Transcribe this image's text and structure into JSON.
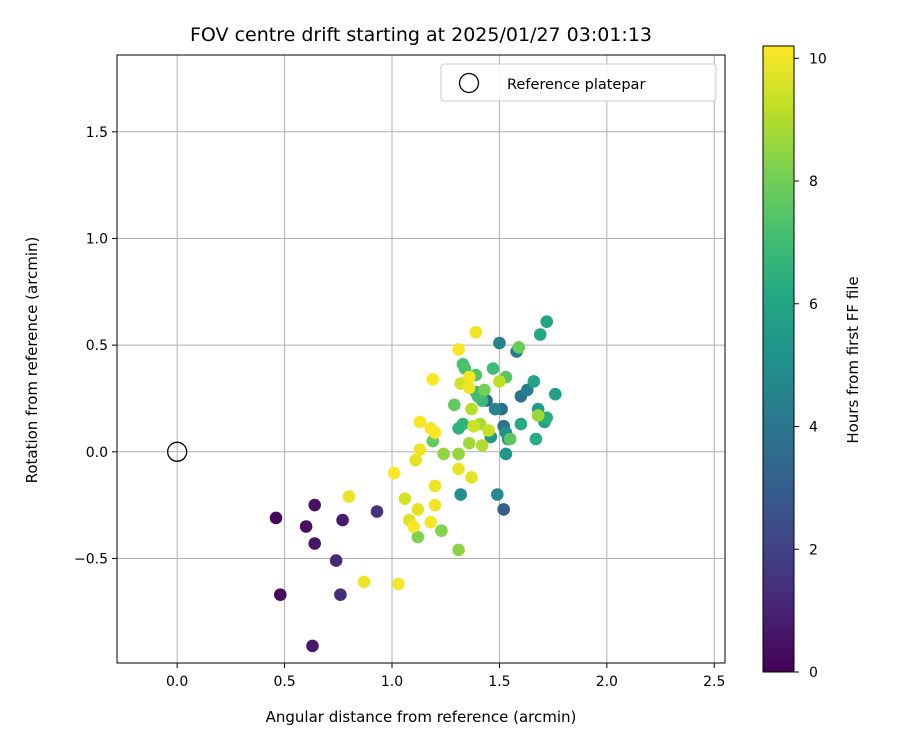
{
  "chart_data": {
    "type": "scatter",
    "title": "FOV centre drift starting at 2025/01/27 03:01:13",
    "xlabel": "Angular distance from reference (arcmin)",
    "ylabel": "Rotation from reference (arcmin)",
    "xlim": [
      -0.28,
      2.55
    ],
    "ylim": [
      -0.99,
      1.86
    ],
    "xticks": [
      0.0,
      0.5,
      1.0,
      1.5,
      2.0,
      2.5
    ],
    "xtick_labels": [
      "0.0",
      "0.5",
      "1.0",
      "1.5",
      "2.0",
      "2.5"
    ],
    "yticks": [
      -0.5,
      0.0,
      0.5,
      1.0,
      1.5
    ],
    "ytick_labels": [
      "−0.5",
      "0.0",
      "0.5",
      "1.0",
      "1.5"
    ],
    "grid": true,
    "legend": {
      "placement": "top-right",
      "entries": [
        "Reference platepar"
      ]
    },
    "reference_point": {
      "x": 0.0,
      "y": 0.0,
      "marker": "open-circle",
      "label": "Reference platepar"
    },
    "colorbar": {
      "label": "Hours from first FF file",
      "colormap": "viridis",
      "range": [
        0,
        10.2
      ],
      "ticks": [
        0,
        2,
        4,
        6,
        8,
        10
      ],
      "tick_labels": [
        "0",
        "2",
        "4",
        "6",
        "8",
        "10"
      ]
    },
    "points": [
      {
        "x": 0.46,
        "y": -0.31,
        "h": 0.2
      },
      {
        "x": 0.48,
        "y": -0.67,
        "h": 0.3
      },
      {
        "x": 0.6,
        "y": -0.35,
        "h": 0.4
      },
      {
        "x": 0.64,
        "y": -0.25,
        "h": 0.5
      },
      {
        "x": 0.64,
        "y": -0.43,
        "h": 0.6
      },
      {
        "x": 0.63,
        "y": -0.91,
        "h": 0.7
      },
      {
        "x": 0.77,
        "y": -0.32,
        "h": 0.8
      },
      {
        "x": 0.74,
        "y": -0.51,
        "h": 1.2
      },
      {
        "x": 0.76,
        "y": -0.67,
        "h": 1.3
      },
      {
        "x": 0.93,
        "y": -0.28,
        "h": 1.5
      },
      {
        "x": 1.52,
        "y": -0.27,
        "h": 3.0
      },
      {
        "x": 1.44,
        "y": 0.24,
        "h": 3.3
      },
      {
        "x": 1.51,
        "y": 0.2,
        "h": 3.6
      },
      {
        "x": 1.52,
        "y": 0.12,
        "h": 3.8
      },
      {
        "x": 1.6,
        "y": 0.26,
        "h": 3.9
      },
      {
        "x": 1.58,
        "y": 0.47,
        "h": 4.2
      },
      {
        "x": 1.63,
        "y": 0.29,
        "h": 4.3
      },
      {
        "x": 1.5,
        "y": 0.51,
        "h": 4.5
      },
      {
        "x": 1.48,
        "y": 0.2,
        "h": 4.6
      },
      {
        "x": 1.49,
        "y": -0.2,
        "h": 4.8
      },
      {
        "x": 1.32,
        "y": -0.2,
        "h": 5.0
      },
      {
        "x": 1.53,
        "y": 0.09,
        "h": 5.1
      },
      {
        "x": 1.54,
        "y": 0.06,
        "h": 5.2
      },
      {
        "x": 1.53,
        "y": -0.01,
        "h": 5.3
      },
      {
        "x": 1.46,
        "y": 0.07,
        "h": 5.4
      },
      {
        "x": 1.68,
        "y": 0.2,
        "h": 5.6
      },
      {
        "x": 1.71,
        "y": 0.14,
        "h": 5.7
      },
      {
        "x": 1.76,
        "y": 0.27,
        "h": 5.8
      },
      {
        "x": 1.66,
        "y": 0.33,
        "h": 5.9
      },
      {
        "x": 1.72,
        "y": 0.61,
        "h": 6.0
      },
      {
        "x": 1.69,
        "y": 0.55,
        "h": 6.1
      },
      {
        "x": 1.6,
        "y": 0.13,
        "h": 6.2
      },
      {
        "x": 1.67,
        "y": 0.06,
        "h": 6.3
      },
      {
        "x": 1.72,
        "y": 0.16,
        "h": 6.4
      },
      {
        "x": 1.31,
        "y": 0.11,
        "h": 6.5
      },
      {
        "x": 1.33,
        "y": 0.13,
        "h": 6.6
      },
      {
        "x": 1.39,
        "y": 0.28,
        "h": 6.7
      },
      {
        "x": 1.42,
        "y": 0.24,
        "h": 6.8
      },
      {
        "x": 1.47,
        "y": 0.39,
        "h": 7.0
      },
      {
        "x": 1.4,
        "y": 0.26,
        "h": 7.1
      },
      {
        "x": 1.33,
        "y": 0.41,
        "h": 7.2
      },
      {
        "x": 1.34,
        "y": 0.39,
        "h": 7.3
      },
      {
        "x": 1.39,
        "y": 0.36,
        "h": 7.4
      },
      {
        "x": 1.53,
        "y": 0.35,
        "h": 7.5
      },
      {
        "x": 1.55,
        "y": 0.06,
        "h": 7.6
      },
      {
        "x": 1.29,
        "y": 0.22,
        "h": 7.7
      },
      {
        "x": 1.19,
        "y": 0.05,
        "h": 7.8
      },
      {
        "x": 1.59,
        "y": 0.49,
        "h": 7.9
      },
      {
        "x": 1.43,
        "y": 0.29,
        "h": 8.0
      },
      {
        "x": 1.12,
        "y": -0.4,
        "h": 8.2
      },
      {
        "x": 1.23,
        "y": -0.37,
        "h": 8.3
      },
      {
        "x": 1.31,
        "y": -0.46,
        "h": 8.4
      },
      {
        "x": 1.24,
        "y": -0.01,
        "h": 8.5
      },
      {
        "x": 1.31,
        "y": -0.01,
        "h": 8.6
      },
      {
        "x": 1.68,
        "y": 0.17,
        "h": 8.7
      },
      {
        "x": 1.36,
        "y": 0.04,
        "h": 8.8
      },
      {
        "x": 1.41,
        "y": 0.13,
        "h": 8.9
      },
      {
        "x": 1.42,
        "y": 0.03,
        "h": 9.0
      },
      {
        "x": 1.37,
        "y": 0.2,
        "h": 9.1
      },
      {
        "x": 1.5,
        "y": 0.33,
        "h": 9.2
      },
      {
        "x": 1.45,
        "y": 0.1,
        "h": 9.3
      },
      {
        "x": 1.38,
        "y": 0.12,
        "h": 9.4
      },
      {
        "x": 1.32,
        "y": 0.32,
        "h": 9.5
      },
      {
        "x": 1.06,
        "y": -0.22,
        "h": 9.6
      },
      {
        "x": 1.08,
        "y": -0.32,
        "h": 9.7
      },
      {
        "x": 1.12,
        "y": -0.27,
        "h": 9.8
      },
      {
        "x": 0.8,
        "y": -0.21,
        "h": 9.9
      },
      {
        "x": 0.87,
        "y": -0.61,
        "h": 10.0
      },
      {
        "x": 1.03,
        "y": -0.62,
        "h": 10.1
      },
      {
        "x": 1.01,
        "y": -0.1,
        "h": 10.2
      },
      {
        "x": 1.1,
        "y": -0.35,
        "h": 10.2
      },
      {
        "x": 1.18,
        "y": -0.33,
        "h": 10.1
      },
      {
        "x": 1.2,
        "y": -0.25,
        "h": 10.0
      },
      {
        "x": 1.2,
        "y": -0.16,
        "h": 9.9
      },
      {
        "x": 1.11,
        "y": -0.04,
        "h": 9.8
      },
      {
        "x": 1.13,
        "y": 0.01,
        "h": 10.0
      },
      {
        "x": 1.18,
        "y": 0.11,
        "h": 10.1
      },
      {
        "x": 1.2,
        "y": 0.09,
        "h": 10.2
      },
      {
        "x": 1.13,
        "y": 0.14,
        "h": 10.1
      },
      {
        "x": 1.19,
        "y": 0.34,
        "h": 10.2
      },
      {
        "x": 1.31,
        "y": 0.48,
        "h": 10.1
      },
      {
        "x": 1.39,
        "y": 0.56,
        "h": 10.0
      },
      {
        "x": 1.36,
        "y": 0.35,
        "h": 10.1
      },
      {
        "x": 1.36,
        "y": 0.3,
        "h": 10.0
      },
      {
        "x": 1.31,
        "y": -0.08,
        "h": 9.9
      },
      {
        "x": 1.37,
        "y": -0.12,
        "h": 9.8
      }
    ]
  }
}
